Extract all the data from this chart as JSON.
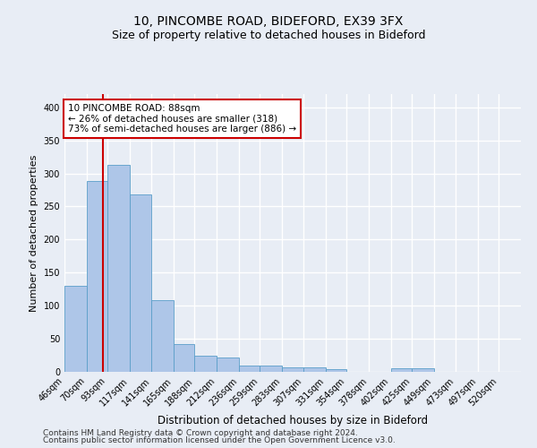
{
  "title1": "10, PINCOMBE ROAD, BIDEFORD, EX39 3FX",
  "title2": "Size of property relative to detached houses in Bideford",
  "xlabel": "Distribution of detached houses by size in Bideford",
  "ylabel": "Number of detached properties",
  "bin_labels": [
    "46sqm",
    "70sqm",
    "93sqm",
    "117sqm",
    "141sqm",
    "165sqm",
    "188sqm",
    "212sqm",
    "236sqm",
    "259sqm",
    "283sqm",
    "307sqm",
    "331sqm",
    "354sqm",
    "378sqm",
    "402sqm",
    "425sqm",
    "449sqm",
    "473sqm",
    "497sqm",
    "520sqm"
  ],
  "bar_values": [
    130,
    288,
    313,
    268,
    108,
    42,
    25,
    22,
    10,
    10,
    7,
    7,
    4,
    0,
    0,
    5,
    5,
    0,
    0,
    0,
    0
  ],
  "bar_color": "#aec6e8",
  "bar_edge_color": "#5a9ec9",
  "red_line_x": 88,
  "bin_edges": [
    46,
    70,
    93,
    117,
    141,
    165,
    188,
    212,
    236,
    259,
    283,
    307,
    331,
    354,
    378,
    402,
    425,
    449,
    473,
    497,
    520,
    544
  ],
  "annotation_text": "10 PINCOMBE ROAD: 88sqm\n← 26% of detached houses are smaller (318)\n73% of semi-detached houses are larger (886) →",
  "annotation_box_color": "#ffffff",
  "annotation_box_edge_color": "#cc0000",
  "ylim": [
    0,
    420
  ],
  "yticks": [
    0,
    50,
    100,
    150,
    200,
    250,
    300,
    350,
    400
  ],
  "footer1": "Contains HM Land Registry data © Crown copyright and database right 2024.",
  "footer2": "Contains public sector information licensed under the Open Government Licence v3.0.",
  "background_color": "#e8edf5",
  "plot_bg_color": "#e8edf5",
  "grid_color": "#ffffff",
  "title1_fontsize": 10,
  "title2_fontsize": 9,
  "xlabel_fontsize": 8.5,
  "ylabel_fontsize": 8,
  "tick_fontsize": 7,
  "annotation_fontsize": 7.5,
  "footer_fontsize": 6.5
}
